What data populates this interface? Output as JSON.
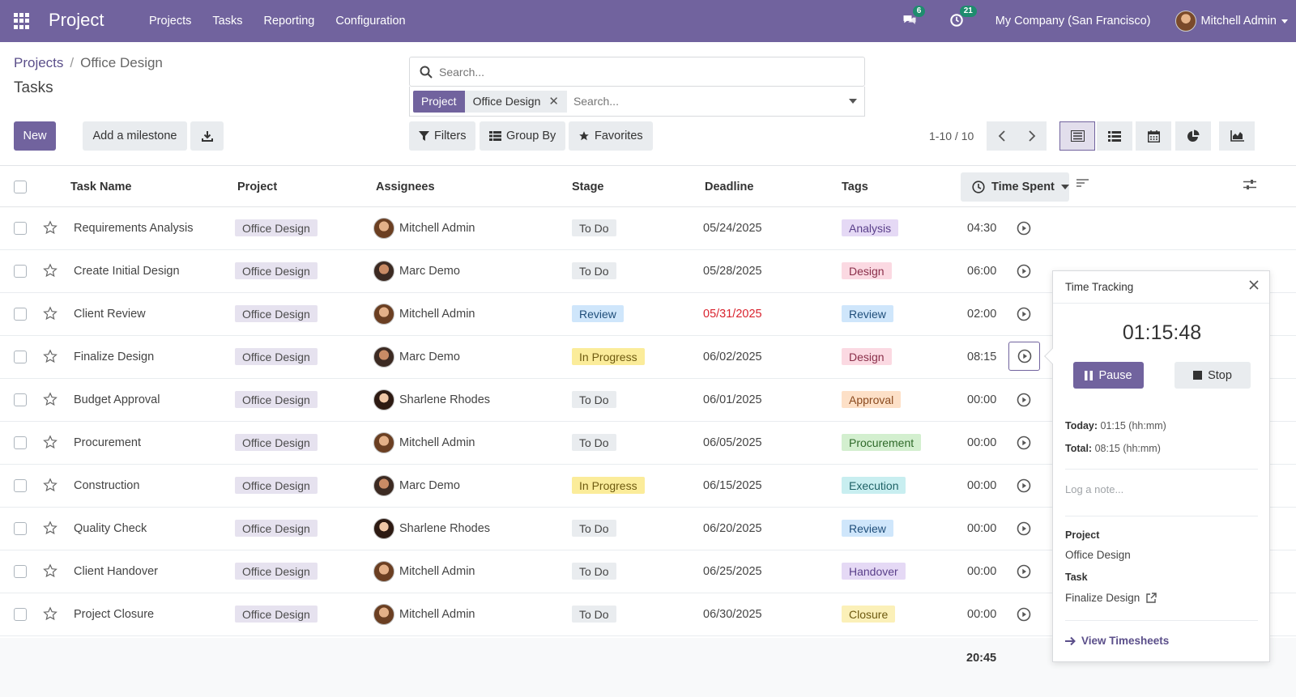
{
  "navbar": {
    "app_title": "Project",
    "menu": [
      "Projects",
      "Tasks",
      "Reporting",
      "Configuration"
    ],
    "messages_badge": "6",
    "activities_badge": "21",
    "company": "My Company (San Francisco)",
    "user": "Mitchell Admin",
    "colors": {
      "bar": "#71639e"
    }
  },
  "control": {
    "breadcrumb_link": "Projects",
    "breadcrumb_sep": "/",
    "breadcrumb_current": "Office Design",
    "title": "Tasks",
    "new_label": "New",
    "milestone_label": "Add a milestone",
    "search_placeholder": "Search...",
    "facet_label": "Project",
    "facet_value": "Office Design",
    "facet_search_placeholder": "Search...",
    "filters_label": "Filters",
    "groupby_label": "Group By",
    "favorites_label": "Favorites",
    "pager": "1-10 / 10"
  },
  "columns": {
    "task": "Task Name",
    "project": "Project",
    "assignees": "Assignees",
    "stage": "Stage",
    "deadline": "Deadline",
    "tags": "Tags",
    "time_spent": "Time Spent"
  },
  "rows": [
    {
      "task": "Requirements Analysis",
      "project": "Office Design",
      "assignee": "Mitchell Admin",
      "avatar": "mitchell",
      "stage": "To Do",
      "deadline": "05/24/2025",
      "overdue": false,
      "tag": "Analysis",
      "tag_bg": "#e5d9f5",
      "tag_fg": "#5a3f8a",
      "time": "04:30"
    },
    {
      "task": "Create Initial Design",
      "project": "Office Design",
      "assignee": "Marc Demo",
      "avatar": "marc",
      "stage": "To Do",
      "deadline": "05/28/2025",
      "overdue": false,
      "tag": "Design",
      "tag_bg": "#fbd9e2",
      "tag_fg": "#8a2f4a",
      "time": "06:00"
    },
    {
      "task": "Client Review",
      "project": "Office Design",
      "assignee": "Mitchell Admin",
      "avatar": "mitchell",
      "stage": "Review",
      "deadline": "05/31/2025",
      "overdue": true,
      "tag": "Review",
      "tag_bg": "#cfe6fb",
      "tag_fg": "#1f4e7a",
      "time": "02:00"
    },
    {
      "task": "Finalize Design",
      "project": "Office Design",
      "assignee": "Marc Demo",
      "avatar": "marc",
      "stage": "In Progress",
      "deadline": "06/02/2025",
      "overdue": false,
      "tag": "Design",
      "tag_bg": "#fbd9e2",
      "tag_fg": "#8a2f4a",
      "time": "08:15"
    },
    {
      "task": "Budget Approval",
      "project": "Office Design",
      "assignee": "Sharlene Rhodes",
      "avatar": "sharlene",
      "stage": "To Do",
      "deadline": "06/01/2025",
      "overdue": false,
      "tag": "Approval",
      "tag_bg": "#fde0c7",
      "tag_fg": "#8a4a1f",
      "time": "00:00"
    },
    {
      "task": "Procurement",
      "project": "Office Design",
      "assignee": "Mitchell Admin",
      "avatar": "mitchell",
      "stage": "To Do",
      "deadline": "06/05/2025",
      "overdue": false,
      "tag": "Procurement",
      "tag_bg": "#d3efcf",
      "tag_fg": "#2f6a2a",
      "time": "00:00"
    },
    {
      "task": "Construction",
      "project": "Office Design",
      "assignee": "Marc Demo",
      "avatar": "marc",
      "stage": "In Progress",
      "deadline": "06/15/2025",
      "overdue": false,
      "tag": "Execution",
      "tag_bg": "#c8eef0",
      "tag_fg": "#1f6266",
      "time": "00:00"
    },
    {
      "task": "Quality Check",
      "project": "Office Design",
      "assignee": "Sharlene Rhodes",
      "avatar": "sharlene",
      "stage": "To Do",
      "deadline": "06/20/2025",
      "overdue": false,
      "tag": "Review",
      "tag_bg": "#cfe6fb",
      "tag_fg": "#1f4e7a",
      "time": "00:00"
    },
    {
      "task": "Client Handover",
      "project": "Office Design",
      "assignee": "Mitchell Admin",
      "avatar": "mitchell",
      "stage": "To Do",
      "deadline": "06/25/2025",
      "overdue": false,
      "tag": "Handover",
      "tag_bg": "#e5d9f5",
      "tag_fg": "#5a3f8a",
      "time": "00:00"
    },
    {
      "task": "Project Closure",
      "project": "Office Design",
      "assignee": "Mitchell Admin",
      "avatar": "mitchell",
      "stage": "To Do",
      "deadline": "06/30/2025",
      "overdue": false,
      "tag": "Closure",
      "tag_bg": "#fbf0b8",
      "tag_fg": "#6e5a10",
      "time": "00:00"
    }
  ],
  "stage_styles": {
    "To Do": {
      "bg": "#e9ecef",
      "fg": "#444444"
    },
    "Review": {
      "bg": "#cfe6fb",
      "fg": "#1f4e7a"
    },
    "In Progress": {
      "bg": "#fbec9a",
      "fg": "#6e5a10"
    }
  },
  "footer": {
    "total_time": "20:45"
  },
  "popover": {
    "title": "Time Tracking",
    "timer": "01:15:48",
    "pause_label": "Pause",
    "stop_label": "Stop",
    "today_label": "Today:",
    "today_value": "01:15 (hh:mm)",
    "total_label": "Total:",
    "total_value": "08:15 (hh:mm)",
    "note_placeholder": "Log a note...",
    "project_label": "Project",
    "project_value": "Office Design",
    "task_label": "Task",
    "task_value": "Finalize Design",
    "timesheets_link": "View Timesheets"
  }
}
